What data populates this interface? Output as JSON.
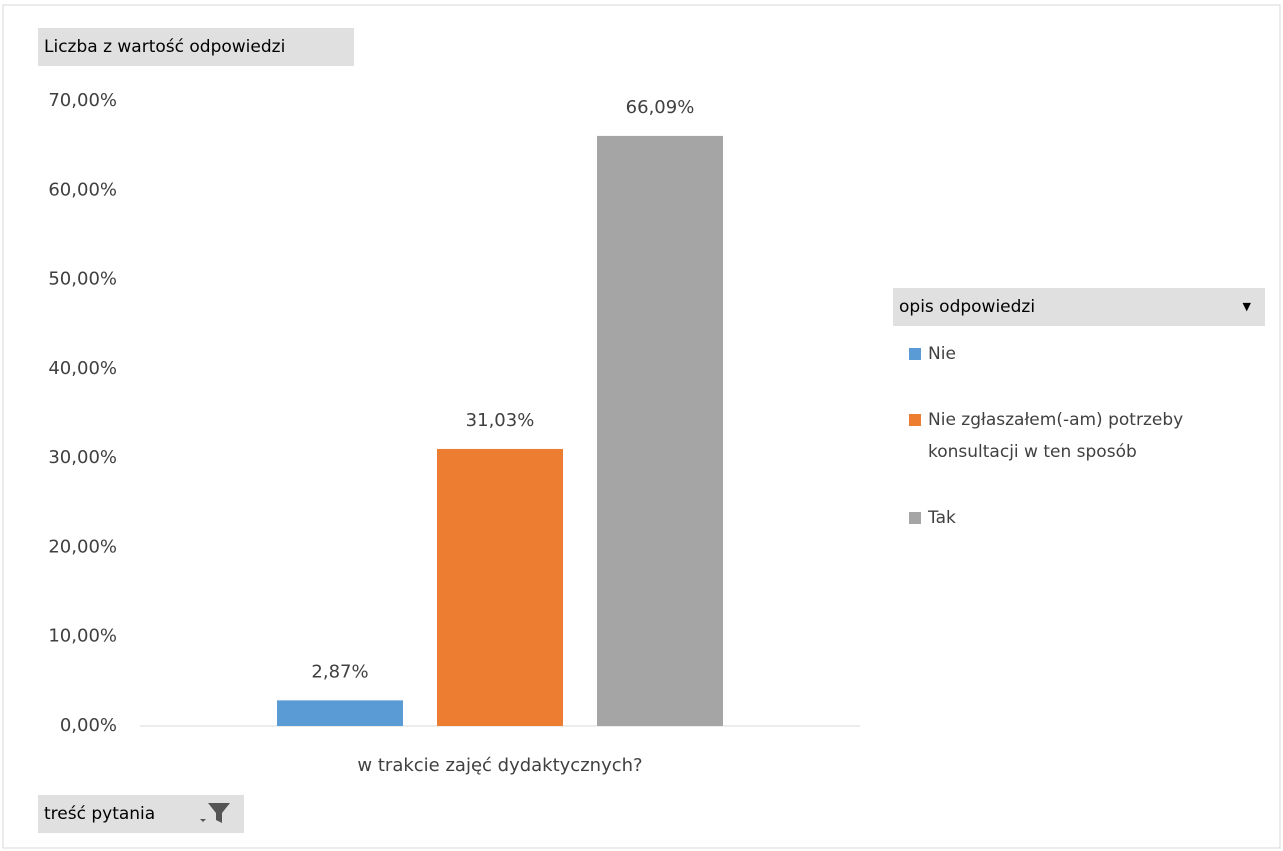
{
  "chart_data": {
    "type": "bar",
    "title": "Liczba z wartość odpowiedzi",
    "categories": [
      "w trakcie zajęć dydaktycznych?"
    ],
    "series": [
      {
        "name": "Nie",
        "color": "#5b9bd5",
        "values": [
          2.87
        ],
        "value_labels": [
          "2,87%"
        ]
      },
      {
        "name": "Nie zgłaszałem(-am) potrzeby konsultacji w ten sposób",
        "color": "#ed7d31",
        "values": [
          31.03
        ],
        "value_labels": [
          "31,03%"
        ]
      },
      {
        "name": "Tak",
        "color": "#a5a5a5",
        "values": [
          66.09
        ],
        "value_labels": [
          "66,09%"
        ]
      }
    ],
    "ylim": [
      0,
      70
    ],
    "yticks": [
      {
        "value": 0,
        "label": "0,00%"
      },
      {
        "value": 10,
        "label": "10,00%"
      },
      {
        "value": 20,
        "label": "20,00%"
      },
      {
        "value": 30,
        "label": "30,00%"
      },
      {
        "value": 40,
        "label": "40,00%"
      },
      {
        "value": 50,
        "label": "50,00%"
      },
      {
        "value": 60,
        "label": "60,00%"
      },
      {
        "value": 70,
        "label": "70,00%"
      }
    ],
    "grid": false,
    "legend_title": "opis odpowiedzi",
    "filter_label": "treść pytania"
  }
}
